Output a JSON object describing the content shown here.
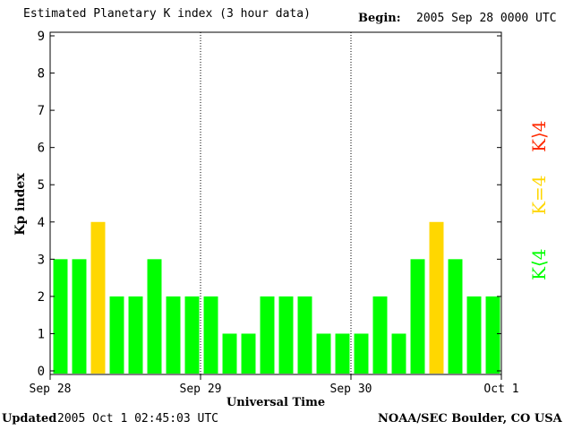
{
  "header": {
    "title": "Estimated Planetary K index (3 hour data)",
    "begin_label": "Begin:",
    "begin_value": "2005 Sep 28 0000 UTC"
  },
  "footer": {
    "updated_label": "Updated",
    "updated_value": "2005 Oct  1 02:45:03 UTC",
    "credit": "NOAA/SEC Boulder, CO USA"
  },
  "legend": {
    "low": "K⟨4",
    "mid": "K=4",
    "high": "K⟩4"
  },
  "colors": {
    "low": "#00ff00",
    "mid": "#ffd700",
    "high": "#ff2a00",
    "axis": "#000000"
  },
  "chart_data": {
    "type": "bar",
    "title": "Estimated Planetary K index (3 hour data)",
    "xlabel": "Universal Time",
    "ylabel": "Kp index",
    "ylim": [
      0,
      9
    ],
    "yticks": [
      "0",
      "1",
      "2",
      "3",
      "4",
      "5",
      "6",
      "7",
      "8",
      "9"
    ],
    "xticks": [
      "Sep 28",
      "Sep 29",
      "Sep 30",
      "Oct 1"
    ],
    "values": [
      3,
      3,
      4,
      2,
      2,
      3,
      2,
      2,
      2,
      1,
      1,
      2,
      2,
      2,
      1,
      1,
      1,
      2,
      1,
      3,
      4,
      3,
      2,
      2
    ]
  }
}
